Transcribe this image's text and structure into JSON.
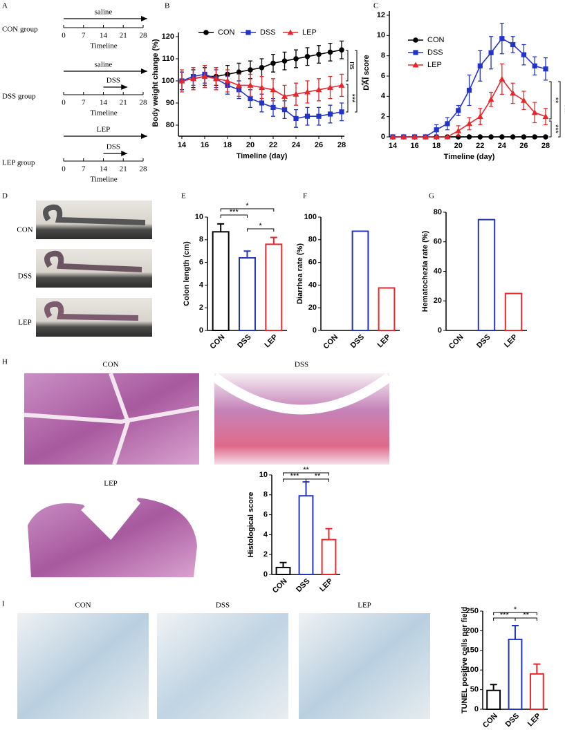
{
  "figure": {
    "panel_labels": [
      "A",
      "B",
      "C",
      "D",
      "E",
      "F",
      "G",
      "H",
      "I"
    ],
    "timeline": {
      "groups": [
        {
          "name": "CON group",
          "arrows": [
            "saline"
          ]
        },
        {
          "name": "DSS group",
          "arrows": [
            "saline",
            "DSS"
          ]
        },
        {
          "name": "LEP group",
          "arrows": [
            "LEP",
            "DSS"
          ]
        }
      ],
      "ticks": [
        0,
        7,
        14,
        21,
        28
      ],
      "axis_label": "Timeline"
    },
    "photos_d": [
      "CON",
      "DSS",
      "LEP"
    ],
    "photos_h": [
      "CON",
      "DSS",
      "LEP"
    ],
    "photos_i": [
      "CON",
      "DSS",
      "LEP"
    ]
  },
  "chart_data": [
    {
      "type": "line",
      "ylabel": "Body weight change (%)",
      "xlabel": "Timeline (day)",
      "x": [
        14,
        15,
        16,
        17,
        18,
        19,
        20,
        21,
        22,
        23,
        24,
        25,
        26,
        27,
        28
      ],
      "xlim": [
        14,
        28
      ],
      "xticks": [
        14,
        16,
        18,
        20,
        22,
        24,
        26,
        28
      ],
      "ylim": [
        75,
        120
      ],
      "yticks": [
        80,
        90,
        100,
        110,
        120
      ],
      "legend": "top",
      "series": [
        {
          "name": "CON",
          "color": "#000000",
          "marker": "circle",
          "values": [
            100,
            101,
            102,
            102,
            103,
            104,
            105,
            106,
            108,
            109,
            110,
            111,
            112,
            113,
            114
          ],
          "errors": [
            4,
            4,
            4,
            4,
            4,
            4,
            4,
            4,
            4,
            4,
            4,
            4,
            4,
            4,
            4
          ]
        },
        {
          "name": "DSS",
          "color": "#2233c8",
          "marker": "square",
          "values": [
            100,
            102,
            103,
            101,
            98,
            96,
            92,
            90,
            88,
            87,
            83,
            84,
            84,
            85,
            86
          ],
          "errors": [
            4,
            4,
            4,
            4,
            4,
            4,
            4,
            4,
            4,
            4,
            4,
            4,
            4,
            4,
            4
          ]
        },
        {
          "name": "LEP",
          "color": "#e8262b",
          "marker": "triangle",
          "values": [
            100,
            101,
            102,
            101,
            100,
            98,
            98,
            97,
            96,
            93,
            94,
            95,
            96,
            97,
            98
          ],
          "errors": [
            5,
            5,
            5,
            5,
            5,
            5,
            5,
            5,
            5,
            5,
            5,
            5,
            5,
            5,
            5
          ]
        }
      ],
      "annotations": [
        "ns",
        "***",
        "***"
      ]
    },
    {
      "type": "line",
      "ylabel": "DAI score",
      "xlabel": "Timeline (day)",
      "x": [
        14,
        15,
        16,
        17,
        18,
        19,
        20,
        21,
        22,
        23,
        24,
        25,
        26,
        27,
        28
      ],
      "xlim": [
        14,
        28
      ],
      "xticks": [
        14,
        16,
        18,
        20,
        22,
        24,
        26,
        28
      ],
      "ylim": [
        0,
        12
      ],
      "yticks": [
        0,
        2,
        4,
        6,
        8,
        10,
        12
      ],
      "legend": "top-right",
      "series": [
        {
          "name": "CON",
          "color": "#000000",
          "marker": "circle",
          "values": [
            0,
            0,
            0,
            0,
            0,
            0,
            0,
            0,
            0,
            0,
            0,
            0,
            0,
            0,
            0
          ],
          "errors": [
            0,
            0,
            0,
            0,
            0,
            0,
            0,
            0,
            0,
            0,
            0,
            0,
            0,
            0,
            0
          ]
        },
        {
          "name": "DSS",
          "color": "#2233c8",
          "marker": "square",
          "values": [
            0,
            0,
            0,
            0,
            0.7,
            1.3,
            2.6,
            4.6,
            7,
            8.3,
            9.7,
            9.1,
            8.1,
            7,
            6.7
          ],
          "errors": [
            0,
            0,
            0,
            0,
            0.5,
            0.6,
            0.5,
            1.5,
            1.5,
            1.6,
            1.5,
            0.8,
            1,
            0.9,
            1.1
          ]
        },
        {
          "name": "LEP",
          "color": "#e8262b",
          "marker": "triangle",
          "values": [
            0,
            0,
            0,
            0,
            0,
            0,
            0.6,
            1.3,
            2,
            3.7,
            5.7,
            4.3,
            3.6,
            2.4,
            2
          ],
          "errors": [
            0,
            0,
            0,
            0,
            0,
            0,
            0.5,
            0.6,
            0.8,
            0.7,
            1.5,
            1,
            0.9,
            1,
            0.8
          ]
        }
      ],
      "annotations": [
        "**",
        "***",
        "***"
      ]
    },
    {
      "type": "bar",
      "ylabel": "Colon length (cm)",
      "categories": [
        "CON",
        "DSS",
        "LEP"
      ],
      "values": [
        8.7,
        6.4,
        7.6
      ],
      "errors": [
        0.7,
        0.6,
        0.6
      ],
      "colors": [
        "#000000",
        "#2233c8",
        "#e8262b"
      ],
      "ylim": [
        0,
        10
      ],
      "yticks": [
        0,
        2,
        4,
        6,
        8,
        10
      ],
      "annotations": [
        "*",
        "***",
        "*"
      ]
    },
    {
      "type": "bar",
      "ylabel": "Diarrhea rate (%)",
      "categories": [
        "CON",
        "DSS",
        "LEP"
      ],
      "values": [
        0,
        87.5,
        37.5
      ],
      "colors": [
        "#000000",
        "#2233c8",
        "#e8262b"
      ],
      "ylim": [
        0,
        100
      ],
      "yticks": [
        0,
        20,
        40,
        60,
        80,
        100
      ]
    },
    {
      "type": "bar",
      "ylabel": "Hematochezia rate (%)",
      "categories": [
        "CON",
        "DSS",
        "LEP"
      ],
      "values": [
        0,
        75,
        25
      ],
      "colors": [
        "#000000",
        "#2233c8",
        "#e8262b"
      ],
      "ylim": [
        0,
        80
      ],
      "yticks": [
        0,
        20,
        40,
        60,
        80
      ]
    },
    {
      "type": "bar",
      "ylabel": "Histological score",
      "categories": [
        "CON",
        "DSS",
        "LEP"
      ],
      "values": [
        0.7,
        7.9,
        3.5
      ],
      "errors": [
        0.5,
        1.4,
        1.1
      ],
      "colors": [
        "#000000",
        "#2233c8",
        "#e8262b"
      ],
      "ylim": [
        0,
        10
      ],
      "yticks": [
        0,
        2,
        4,
        6,
        8,
        10
      ],
      "annotations": [
        "**",
        "***",
        "**"
      ]
    },
    {
      "type": "bar",
      "ylabel": "TUNEL positive cells per field",
      "categories": [
        "CON",
        "DSS",
        "LEP"
      ],
      "values": [
        48,
        178,
        90
      ],
      "errors": [
        15,
        35,
        25
      ],
      "colors": [
        "#000000",
        "#2233c8",
        "#e8262b"
      ],
      "ylim": [
        0,
        250
      ],
      "yticks": [
        0,
        50,
        100,
        150,
        200,
        250
      ],
      "annotations": [
        "*",
        "***",
        "**"
      ]
    }
  ]
}
